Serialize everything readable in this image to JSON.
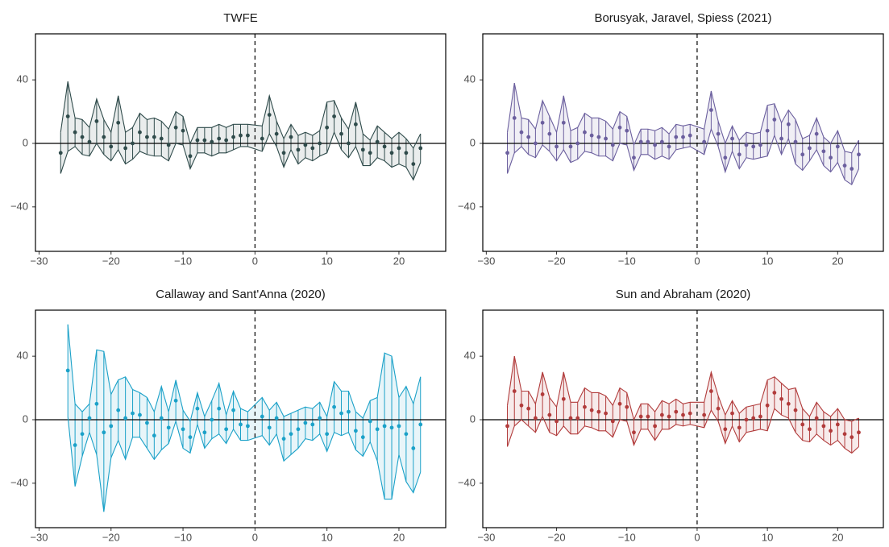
{
  "chart_data": [
    {
      "type": "errorband",
      "title": "TWFE",
      "color": "#2f4b4b",
      "x": [
        -27,
        -26,
        -25,
        -24,
        -23,
        -22,
        -21,
        -20,
        -19,
        -18,
        -17,
        -16,
        -15,
        -14,
        -13,
        -12,
        -11,
        -10,
        -9,
        -8,
        -7,
        -6,
        -5,
        -4,
        -3,
        -2,
        -1,
        1,
        2,
        3,
        4,
        5,
        6,
        7,
        8,
        9,
        10,
        11,
        12,
        13,
        14,
        15,
        16,
        17,
        18,
        19,
        20,
        21,
        22,
        23
      ],
      "values": [
        -6,
        17,
        7,
        4,
        1,
        14,
        4,
        -2,
        13,
        -3,
        0,
        7,
        4,
        4,
        3,
        -1,
        10,
        8,
        -8,
        2,
        2,
        1,
        3,
        2,
        4,
        5,
        5,
        3,
        18,
        6,
        -6,
        4,
        -4,
        -1,
        -3,
        0,
        10,
        17,
        6,
        0,
        12,
        -4,
        -6,
        1,
        -2,
        -6,
        -3,
        -6,
        -13,
        -3
      ],
      "upper": [
        7,
        39,
        16,
        15,
        10,
        28,
        15,
        7,
        30,
        7,
        10,
        19,
        15,
        16,
        14,
        9,
        20,
        17,
        0,
        10,
        10,
        10,
        12,
        10,
        12,
        12,
        12,
        11,
        30,
        14,
        3,
        12,
        5,
        7,
        5,
        8,
        26,
        27,
        16,
        9,
        26,
        6,
        2,
        11,
        7,
        3,
        7,
        3,
        -3,
        6
      ],
      "lower": [
        -19,
        -5,
        -2,
        -7,
        -8,
        0,
        -7,
        -11,
        -4,
        -13,
        -10,
        -5,
        -7,
        -8,
        -8,
        -11,
        0,
        -1,
        -16,
        -6,
        -6,
        -8,
        -6,
        -6,
        -4,
        -2,
        -2,
        -5,
        6,
        -2,
        -15,
        -4,
        -13,
        -9,
        -11,
        -8,
        -6,
        7,
        -4,
        -9,
        -2,
        -14,
        -14,
        -9,
        -11,
        -15,
        -13,
        -15,
        -23,
        -12
      ],
      "xlim": [
        -30.5,
        26.5
      ],
      "ylim": [
        -68,
        69
      ],
      "hline": 0,
      "vline": 0,
      "xticks": [
        {
          "value": -30,
          "label": "−30"
        },
        {
          "value": -20,
          "label": "−20"
        },
        {
          "value": -10,
          "label": "−10"
        },
        0,
        10,
        20
      ],
      "yticks": [
        {
          "value": -40,
          "label": "−40"
        },
        0,
        40
      ]
    },
    {
      "type": "errorband",
      "title": "Borusyak, Jaravel, Spiess (2021)",
      "color": "#6b5f9e",
      "x": [
        -27,
        -26,
        -25,
        -24,
        -23,
        -22,
        -21,
        -20,
        -19,
        -18,
        -17,
        -16,
        -15,
        -14,
        -13,
        -12,
        -11,
        -10,
        -9,
        -8,
        -7,
        -6,
        -5,
        -4,
        -3,
        -2,
        -1,
        1,
        2,
        3,
        4,
        5,
        6,
        7,
        8,
        9,
        10,
        11,
        12,
        13,
        14,
        15,
        16,
        17,
        18,
        19,
        20,
        21,
        22,
        23
      ],
      "values": [
        -6,
        16,
        7,
        4,
        0,
        13,
        6,
        -2,
        13,
        -2,
        0,
        7,
        5,
        4,
        3,
        -1,
        10,
        8,
        -9,
        1,
        1,
        -1,
        1,
        -2,
        4,
        4,
        5,
        1,
        21,
        6,
        -9,
        3,
        -7,
        -1,
        -2,
        -1,
        8,
        15,
        3,
        12,
        1,
        -7,
        -3,
        6,
        -5,
        -9,
        -2,
        -14,
        -16,
        -7
      ],
      "upper": [
        7,
        38,
        16,
        15,
        9,
        27,
        17,
        7,
        30,
        8,
        10,
        19,
        16,
        16,
        14,
        9,
        20,
        17,
        -1,
        9,
        9,
        8,
        10,
        6,
        12,
        11,
        12,
        9,
        33,
        14,
        0,
        11,
        2,
        7,
        6,
        7,
        24,
        25,
        13,
        21,
        15,
        3,
        5,
        16,
        4,
        0,
        8,
        -5,
        -6,
        2
      ],
      "lower": [
        -19,
        -6,
        -2,
        -7,
        -9,
        -1,
        -5,
        -11,
        -4,
        -12,
        -10,
        -5,
        -6,
        -8,
        -8,
        -11,
        0,
        -1,
        -17,
        -7,
        -7,
        -10,
        -8,
        -10,
        -4,
        -3,
        -2,
        -7,
        9,
        -2,
        -18,
        -5,
        -16,
        -9,
        -10,
        -9,
        -8,
        5,
        -7,
        3,
        -13,
        -17,
        -11,
        -4,
        -14,
        -18,
        -12,
        -23,
        -26,
        -16
      ],
      "xlim": [
        -30.5,
        26.5
      ],
      "ylim": [
        -68,
        69
      ],
      "hline": 0,
      "vline": 0,
      "xticks": [
        {
          "value": -30,
          "label": "−30"
        },
        {
          "value": -20,
          "label": "−20"
        },
        {
          "value": -10,
          "label": "−10"
        },
        0,
        10,
        20
      ],
      "yticks": [
        {
          "value": -40,
          "label": "−40"
        },
        0,
        40
      ]
    },
    {
      "type": "errorband",
      "title": "Callaway and Sant'Anna (2020)",
      "color": "#1ba1c8",
      "x": [
        -26,
        -25,
        -24,
        -23,
        -22,
        -21,
        -20,
        -19,
        -18,
        -17,
        -16,
        -15,
        -14,
        -13,
        -12,
        -11,
        -10,
        -9,
        -8,
        -7,
        -6,
        -5,
        -4,
        -3,
        -2,
        -1,
        1,
        2,
        3,
        4,
        5,
        6,
        7,
        8,
        9,
        10,
        11,
        12,
        13,
        14,
        15,
        16,
        17,
        18,
        19,
        20,
        21,
        22,
        23
      ],
      "values": [
        31,
        -16,
        -9,
        1,
        10,
        -8,
        -4,
        6,
        1,
        4,
        3,
        -2,
        -10,
        1,
        -5,
        12,
        -6,
        -11,
        7,
        -8,
        0,
        7,
        -6,
        6,
        -3,
        -4,
        2,
        -5,
        1,
        -12,
        -9,
        -6,
        -2,
        -3,
        1,
        -9,
        8,
        4,
        5,
        -7,
        -11,
        -1,
        -6,
        -4,
        -5,
        -4,
        -9,
        -18,
        -3
      ],
      "upper": [
        60,
        10,
        5,
        10,
        44,
        43,
        16,
        25,
        27,
        19,
        17,
        14,
        5,
        21,
        5,
        25,
        6,
        -1,
        17,
        2,
        12,
        23,
        3,
        18,
        7,
        5,
        14,
        6,
        11,
        2,
        4,
        6,
        8,
        7,
        11,
        2,
        24,
        18,
        18,
        5,
        1,
        12,
        14,
        42,
        40,
        14,
        21,
        10,
        27
      ],
      "lower": [
        2,
        -42,
        -23,
        -8,
        -22,
        -58,
        -24,
        -13,
        -25,
        -11,
        -11,
        -18,
        -25,
        -19,
        -15,
        -1,
        -18,
        -21,
        -3,
        -18,
        -12,
        -9,
        -15,
        -6,
        -13,
        -13,
        -10,
        -16,
        -9,
        -26,
        -22,
        -18,
        -12,
        -13,
        -9,
        -20,
        -8,
        -10,
        -8,
        -19,
        -23,
        -14,
        -26,
        -50,
        -50,
        -22,
        -39,
        -46,
        -33
      ],
      "xlim": [
        -30.5,
        26.5
      ],
      "ylim": [
        -68,
        69
      ],
      "hline": 0,
      "vline": 0,
      "xticks": [
        {
          "value": -30,
          "label": "−30"
        },
        {
          "value": -20,
          "label": "−20"
        },
        {
          "value": -10,
          "label": "−10"
        },
        0,
        10,
        20
      ],
      "yticks": [
        {
          "value": -40,
          "label": "−40"
        },
        0,
        40
      ]
    },
    {
      "type": "errorband",
      "title": "Sun and Abraham (2020)",
      "color": "#b13b3b",
      "x": [
        -27,
        -26,
        -25,
        -24,
        -23,
        -22,
        -21,
        -20,
        -19,
        -18,
        -17,
        -16,
        -15,
        -14,
        -13,
        -12,
        -11,
        -10,
        -9,
        -8,
        -7,
        -6,
        -5,
        -4,
        -3,
        -2,
        -1,
        1,
        2,
        3,
        4,
        5,
        6,
        7,
        8,
        9,
        10,
        11,
        12,
        13,
        14,
        15,
        16,
        17,
        18,
        19,
        20,
        21,
        22,
        23
      ],
      "values": [
        -4,
        18,
        9,
        7,
        1,
        16,
        3,
        -1,
        13,
        1,
        1,
        8,
        6,
        5,
        4,
        -1,
        10,
        8,
        -8,
        2,
        2,
        -4,
        3,
        2,
        5,
        3,
        4,
        3,
        18,
        7,
        -6,
        4,
        -5,
        0,
        1,
        2,
        9,
        17,
        13,
        10,
        6,
        -3,
        -6,
        1,
        -4,
        -7,
        -3,
        -9,
        -11,
        -8
      ],
      "upper": [
        9,
        40,
        18,
        18,
        10,
        30,
        14,
        8,
        30,
        11,
        11,
        20,
        17,
        17,
        15,
        9,
        20,
        17,
        0,
        10,
        10,
        5,
        12,
        10,
        13,
        10,
        11,
        11,
        30,
        15,
        3,
        12,
        4,
        8,
        9,
        10,
        25,
        27,
        23,
        19,
        20,
        7,
        2,
        11,
        5,
        2,
        7,
        0,
        -1,
        1
      ],
      "lower": [
        -17,
        -4,
        0,
        -4,
        -8,
        2,
        -8,
        -10,
        -4,
        -9,
        -9,
        -4,
        -5,
        -7,
        -7,
        -11,
        0,
        -1,
        -16,
        -6,
        -6,
        -13,
        -6,
        -6,
        -3,
        -4,
        -3,
        -5,
        6,
        -1,
        -15,
        -4,
        -14,
        -8,
        -7,
        -6,
        -7,
        7,
        3,
        1,
        -8,
        -13,
        -14,
        -9,
        -13,
        -16,
        -13,
        -18,
        -21,
        -17
      ],
      "xlim": [
        -30.5,
        26.5
      ],
      "ylim": [
        -68,
        69
      ],
      "hline": 0,
      "vline": 0,
      "xticks": [
        {
          "value": -30,
          "label": "−30"
        },
        {
          "value": -20,
          "label": "−20"
        },
        {
          "value": -10,
          "label": "−10"
        },
        0,
        10,
        20
      ],
      "yticks": [
        {
          "value": -40,
          "label": "−40"
        },
        0,
        40
      ]
    }
  ]
}
